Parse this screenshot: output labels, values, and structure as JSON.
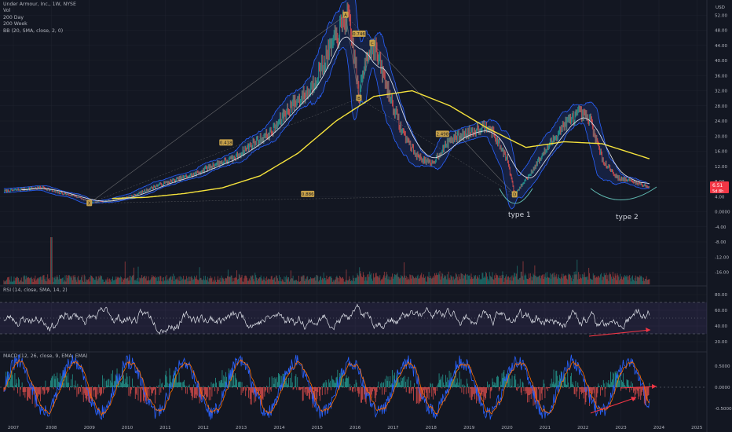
{
  "header": {
    "title": "Under Armour, Inc., 1W, NYSE",
    "lines": [
      "Vol",
      "200 Day",
      "200 Week",
      "BB (20, SMA, close, 2, 0)"
    ],
    "currency": "USD"
  },
  "rsi_title": "RSI (14, close, SMA, 14, 2)",
  "macd_title": "MACD (12, 26, close, 9, EMA, EMA)",
  "price_badge": {
    "value": "6.51",
    "sub": "5d 8h"
  },
  "annotations": {
    "type1": "type 1",
    "type2": "type 2"
  },
  "pattern_labels": [
    {
      "text": "X",
      "x": 2009.0,
      "y": 2.2
    },
    {
      "text": "A",
      "x": 2015.75,
      "y": 52.0
    },
    {
      "text": "B",
      "x": 2016.1,
      "y": 30.0
    },
    {
      "text": "C",
      "x": 2016.45,
      "y": 44.5
    },
    {
      "text": "D",
      "x": 2020.2,
      "y": 4.5
    },
    {
      "text": "0.418",
      "x": 2012.6,
      "y": 18.2
    },
    {
      "text": "0.746",
      "x": 2016.1,
      "y": 47.0
    },
    {
      "text": "2.498",
      "x": 2018.3,
      "y": 20.5
    },
    {
      "text": "0.886",
      "x": 2014.75,
      "y": 4.6
    }
  ],
  "chart_data": [
    {
      "type": "line",
      "panel": "price",
      "x_ticks": [
        "2007",
        "2008",
        "2009",
        "2010",
        "2011",
        "2012",
        "2013",
        "2014",
        "2015",
        "2016",
        "2017",
        "2018",
        "2019",
        "2020",
        "2021",
        "2022",
        "2023",
        "2024",
        "2025"
      ],
      "y_ticks": [
        "52.00",
        "48.00",
        "44.00",
        "40.00",
        "36.00",
        "32.00",
        "28.00",
        "24.00",
        "20.00",
        "16.00",
        "12.00",
        "8.00",
        "4.00",
        "0.0000",
        "-4.00",
        "-8.00",
        "-12.00",
        "-16.00"
      ],
      "series": [
        {
          "name": "Price",
          "x": [
            2006.75,
            2007.3,
            2007.8,
            2008.1,
            2008.6,
            2009.05,
            2009.6,
            2010.2,
            2010.8,
            2011.3,
            2011.8,
            2012.3,
            2012.8,
            2013.3,
            2013.8,
            2014.3,
            2014.8,
            2015.2,
            2015.6,
            2015.8,
            2016.0,
            2016.1,
            2016.3,
            2016.5,
            2016.8,
            2017.2,
            2017.6,
            2018.0,
            2018.5,
            2019.0,
            2019.5,
            2020.0,
            2020.2,
            2020.6,
            2021.0,
            2021.5,
            2021.9,
            2022.2,
            2022.5,
            2022.9,
            2023.3,
            2023.75
          ],
          "values": [
            5.4,
            6.0,
            6.4,
            5.2,
            4.2,
            2.4,
            3.0,
            4.4,
            7.0,
            8.5,
            10.0,
            12.5,
            14.0,
            18.0,
            21.0,
            28.0,
            32.0,
            40.0,
            48.0,
            52.0,
            40.0,
            30.0,
            42.0,
            44.0,
            34.0,
            22.0,
            15.0,
            12.5,
            19.0,
            21.0,
            23.0,
            14.0,
            4.5,
            10.0,
            16.0,
            23.0,
            26.0,
            24.0,
            14.0,
            9.0,
            8.0,
            6.51
          ]
        },
        {
          "name": "200 Week",
          "x": [
            2009.6,
            2010.5,
            2011.5,
            2012.5,
            2013.5,
            2014.5,
            2015.5,
            2016.5,
            2017.5,
            2018.5,
            2019.5,
            2020.5,
            2021.5,
            2022.5,
            2023.75
          ],
          "values": [
            3.5,
            3.8,
            4.8,
            6.3,
            9.5,
            15.5,
            24.0,
            30.5,
            32.0,
            28.0,
            22.0,
            17.0,
            18.5,
            18.0,
            14.0
          ]
        }
      ],
      "legend": [
        "Vol",
        "200 Day",
        "200 Week",
        "BB (20, SMA, close, 2, 0)"
      ]
    },
    {
      "type": "line",
      "panel": "rsi",
      "y_ticks": [
        "80.00",
        "60.00",
        "40.00",
        "20.00"
      ],
      "bands": [
        30,
        70
      ],
      "title": "RSI (14, close, SMA, 14, 2)"
    },
    {
      "type": "bar",
      "panel": "macd",
      "y_ticks": [
        "0.5000",
        "0.0000",
        "-0.5000"
      ],
      "title": "MACD (12, 26, close, 9, EMA, EMA)"
    }
  ],
  "colors": {
    "bg": "#131722",
    "grid": "#1e222d",
    "text": "#b2b5be",
    "price": "#c9cdd6",
    "bb": "#2962ff",
    "ma200w": "#f5e23c",
    "ma200d": "#d8dbe4",
    "vol_up": "#26a69a",
    "vol_down": "#ef5350",
    "pattern": "#c8a24a",
    "pattern_line": "#8b8b8b",
    "arrow": "#f23645",
    "curve": "#5fb8b0"
  }
}
